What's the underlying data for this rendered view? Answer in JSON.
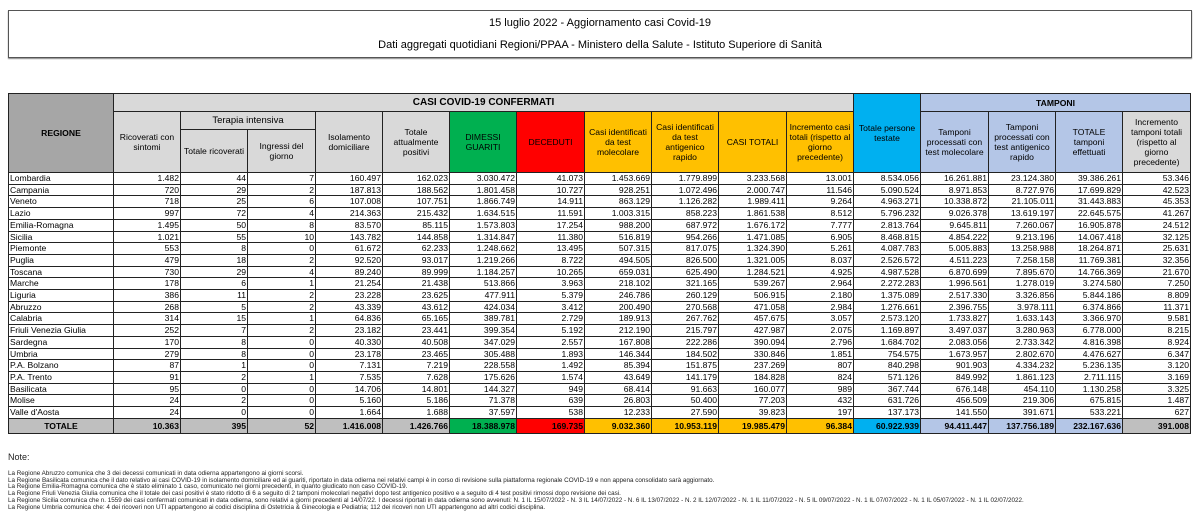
{
  "header": {
    "title": "15 luglio 2022 - Aggiornamento casi Covid-19",
    "subtitle": "Dati aggregati quotidiani Regioni/PPAA - Ministero della Salute - Istituto Superiore di Sanità"
  },
  "table": {
    "group_casi": "CASI COVID-19 CONFERMATI",
    "group_ti": "Terapia intensiva",
    "group_tamponi": "TAMPONI",
    "headers": {
      "regione": "REGIONE",
      "ricoverati": "Ricoverati con sintomi",
      "ti_totale": "Totale ricoverati",
      "ti_ingressi": "Ingressi del giorno",
      "isolamento": "Isolamento domiciliare",
      "attualmente": "Totale attualmente positivi",
      "dimessi": "DIMESSI GUARITI",
      "deceduti": "DECEDUTI",
      "molecolare": "Casi identificati da test molecolare",
      "antigenico": "Casi identificati da test antigenico rapido",
      "casi_totali": "CASI TOTALI",
      "incremento": "Incremento casi totali (rispetto al giorno precedente)",
      "persone": "Totale persone testate",
      "tamp_mol": "Tamponi processati con test molecolare",
      "tamp_ant": "Tamponi processati con test antigenico rapido",
      "tamp_tot": "TOTALE tamponi effettuati",
      "tamp_incr": "Incremento tamponi totali (rispetto al giorno precedente)"
    },
    "rows": [
      [
        "Lombardia",
        "1.482",
        "44",
        "7",
        "160.497",
        "162.023",
        "3.030.472",
        "41.073",
        "1.453.669",
        "1.779.899",
        "3.233.568",
        "13.001",
        "8.534.056",
        "16.261.881",
        "23.124.380",
        "39.386.261",
        "53.346"
      ],
      [
        "Campania",
        "720",
        "29",
        "2",
        "187.813",
        "188.562",
        "1.801.458",
        "10.727",
        "928.251",
        "1.072.496",
        "2.000.747",
        "11.546",
        "5.090.524",
        "8.971.853",
        "8.727.976",
        "17.699.829",
        "42.523"
      ],
      [
        "Veneto",
        "718",
        "25",
        "6",
        "107.008",
        "107.751",
        "1.866.749",
        "14.911",
        "863.129",
        "1.126.282",
        "1.989.411",
        "9.264",
        "4.963.271",
        "10.338.872",
        "21.105.011",
        "31.443.883",
        "45.353"
      ],
      [
        "Lazio",
        "997",
        "72",
        "4",
        "214.363",
        "215.432",
        "1.634.515",
        "11.591",
        "1.003.315",
        "858.223",
        "1.861.538",
        "8.512",
        "5.796.232",
        "9.026.378",
        "13.619.197",
        "22.645.575",
        "41.267"
      ],
      [
        "Emilia-Romagna",
        "1.495",
        "50",
        "8",
        "83.570",
        "85.115",
        "1.573.803",
        "17.254",
        "988.200",
        "687.972",
        "1.676.172",
        "7.777",
        "2.813.764",
        "9.645.811",
        "7.260.067",
        "16.905.878",
        "24.512"
      ],
      [
        "Sicilia",
        "1.021",
        "55",
        "10",
        "143.782",
        "144.858",
        "1.314.847",
        "11.380",
        "516.819",
        "954.266",
        "1.471.085",
        "6.905",
        "8.468.815",
        "4.854.222",
        "9.213.196",
        "14.067.418",
        "32.125"
      ],
      [
        "Piemonte",
        "553",
        "8",
        "0",
        "61.672",
        "62.233",
        "1.248.662",
        "13.495",
        "507.315",
        "817.075",
        "1.324.390",
        "5.261",
        "4.087.783",
        "5.005.883",
        "13.258.988",
        "18.264.871",
        "25.631"
      ],
      [
        "Puglia",
        "479",
        "18",
        "2",
        "92.520",
        "93.017",
        "1.219.266",
        "8.722",
        "494.505",
        "826.500",
        "1.321.005",
        "8.037",
        "2.526.572",
        "4.511.223",
        "7.258.158",
        "11.769.381",
        "32.356"
      ],
      [
        "Toscana",
        "730",
        "29",
        "4",
        "89.240",
        "89.999",
        "1.184.257",
        "10.265",
        "659.031",
        "625.490",
        "1.284.521",
        "4.925",
        "4.987.528",
        "6.870.699",
        "7.895.670",
        "14.766.369",
        "21.670"
      ],
      [
        "Marche",
        "178",
        "6",
        "1",
        "21.254",
        "21.438",
        "513.866",
        "3.963",
        "218.102",
        "321.165",
        "539.267",
        "2.964",
        "2.272.283",
        "1.996.561",
        "1.278.019",
        "3.274.580",
        "7.250"
      ],
      [
        "Liguria",
        "386",
        "11",
        "2",
        "23.228",
        "23.625",
        "477.911",
        "5.379",
        "246.786",
        "260.129",
        "506.915",
        "2.180",
        "1.375.089",
        "2.517.330",
        "3.326.856",
        "5.844.186",
        "8.809"
      ],
      [
        "Abruzzo",
        "268",
        "5",
        "2",
        "43.339",
        "43.612",
        "424.034",
        "3.412",
        "200.490",
        "270.568",
        "471.058",
        "2.984",
        "1.276.661",
        "2.396.755",
        "3.978.111",
        "6.374.866",
        "11.371"
      ],
      [
        "Calabria",
        "314",
        "15",
        "1",
        "64.836",
        "65.165",
        "389.781",
        "2.729",
        "189.913",
        "267.762",
        "457.675",
        "3.057",
        "2.573.120",
        "1.733.827",
        "1.633.143",
        "3.366.970",
        "9.581"
      ],
      [
        "Friuli Venezia Giulia",
        "252",
        "7",
        "2",
        "23.182",
        "23.441",
        "399.354",
        "5.192",
        "212.190",
        "215.797",
        "427.987",
        "2.075",
        "1.169.897",
        "3.497.037",
        "3.280.963",
        "6.778.000",
        "8.215"
      ],
      [
        "Sardegna",
        "170",
        "8",
        "0",
        "40.330",
        "40.508",
        "347.029",
        "2.557",
        "167.808",
        "222.286",
        "390.094",
        "2.796",
        "1.684.702",
        "2.083.056",
        "2.733.342",
        "4.816.398",
        "8.924"
      ],
      [
        "Umbria",
        "279",
        "8",
        "0",
        "23.178",
        "23.465",
        "305.488",
        "1.893",
        "146.344",
        "184.502",
        "330.846",
        "1.851",
        "754.575",
        "1.673.957",
        "2.802.670",
        "4.476.627",
        "6.347"
      ],
      [
        "P.A. Bolzano",
        "87",
        "1",
        "0",
        "7.131",
        "7.219",
        "228.558",
        "1.492",
        "85.394",
        "151.875",
        "237.269",
        "807",
        "840.298",
        "901.903",
        "4.334.232",
        "5.236.135",
        "3.120"
      ],
      [
        "P.A. Trento",
        "91",
        "2",
        "1",
        "7.535",
        "7.628",
        "175.626",
        "1.574",
        "43.649",
        "141.179",
        "184.828",
        "824",
        "571.126",
        "849.992",
        "1.861.123",
        "2.711.115",
        "3.169"
      ],
      [
        "Basilicata",
        "95",
        "0",
        "0",
        "14.706",
        "14.801",
        "144.327",
        "949",
        "68.414",
        "91.663",
        "160.077",
        "989",
        "367.744",
        "676.148",
        "454.110",
        "1.130.258",
        "3.325"
      ],
      [
        "Molise",
        "24",
        "2",
        "0",
        "5.160",
        "5.186",
        "71.378",
        "639",
        "26.803",
        "50.400",
        "77.203",
        "432",
        "631.726",
        "456.509",
        "219.306",
        "675.815",
        "1.487"
      ],
      [
        "Valle d'Aosta",
        "24",
        "0",
        "0",
        "1.664",
        "1.688",
        "37.597",
        "538",
        "12.233",
        "27.590",
        "39.823",
        "197",
        "137.173",
        "141.550",
        "391.671",
        "533.221",
        "627"
      ]
    ],
    "total": [
      "TOTALE",
      "10.363",
      "395",
      "52",
      "1.416.008",
      "1.426.766",
      "18.388.978",
      "169.735",
      "9.032.360",
      "10.953.119",
      "19.985.479",
      "96.384",
      "60.922.939",
      "94.411.447",
      "137.756.189",
      "232.167.636",
      "391.008"
    ]
  },
  "notes": {
    "title": "Note:",
    "lines": [
      "La Regione Abruzzo comunica che 3 dei decessi comunicati in data odierna appartengono ai giorni scorsi.",
      "La Regione Basilicata comunica che il dato relativo ai casi COVID-19 in isolamento domiciliare ed ai guariti, riportato in data odierna nei relativi campi è in corso di revisione sulla piattaforma regionale COVID-19 e non appena consolidato sarà aggiornato.",
      "La Regione Emilia-Romagna  comunica che  è stato eliminato 1 caso, comunicato nei giorni precedenti, in quanto giudicato non caso COVID-19.",
      "La Regione Friuli Venezia Giulia comunica che  il totale dei casi positivi è stato ridotto di 6 a seguito di 2 tamponi molecolari negativi dopo test antigenico positivo  e a seguito di 4 test positivi rimossi dopo revisione dei casi.",
      "La Regione Sicilia comunica che n. 1559  dei casi confermati comunicati in data odierna, sono relativi a giorni precedenti al 14/07/22. I decessi riportati in data odierna sono avvenuti: N. 1 IL 15/07/2022 - N. 3 IL 14/07/2022 - N. 6 IL 13/07/2022 - N. 2 IL 12/07/2022 - N. 1 IL 11/07/2022 - N. 5 IL 09/07/2022 - N. 1 IL 07/07/2022 - N. 1 IL 05/07/2022 - N. 1 IL 02/07/2022.",
      "La Regione Umbria comunica che: 4 dei ricoveri non UTI appartengono ai codici disciplina di Ostetricia & Ginecologia e Pediatria; 112 dei ricoveri non UTI appartengono ad altri codici disciplina."
    ]
  },
  "colors": {
    "dimessi": "#00b050",
    "deceduti": "#ff0000",
    "casi": "#ffc000",
    "persone": "#00b0f0",
    "tamponi": "#b4c6e7",
    "header_gray": "#d9d9d9",
    "regione": "#a6a6a6"
  }
}
